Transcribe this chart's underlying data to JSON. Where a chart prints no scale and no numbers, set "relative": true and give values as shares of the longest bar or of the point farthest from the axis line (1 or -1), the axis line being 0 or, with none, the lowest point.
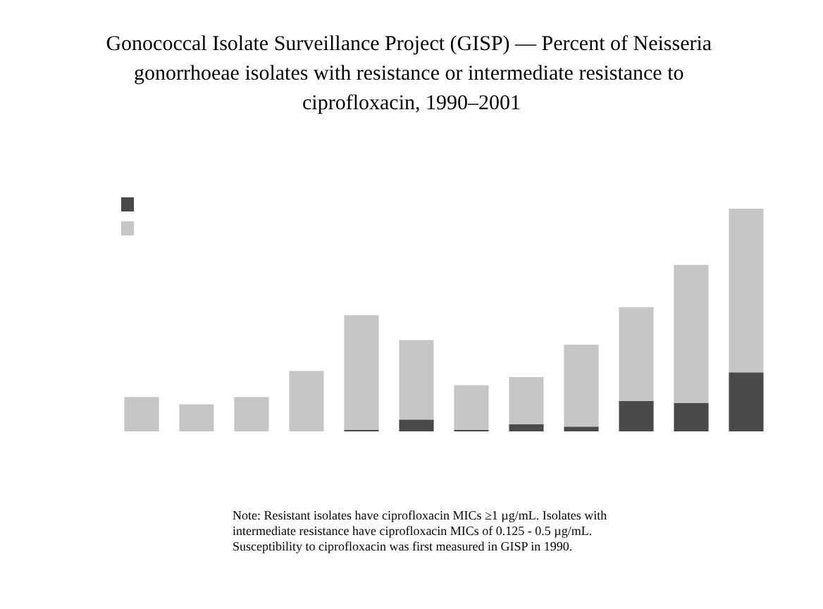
{
  "chart_data": {
    "type": "bar",
    "title": "Gonococcal Isolate Surveillance Project (GISP) — Percent of Neisseria gonorrhoeae isolates with resistance or intermediate resistance to ciprofloxacin, 1990–2001",
    "categories": [
      null,
      null,
      null,
      null,
      null,
      null,
      null,
      null,
      null,
      null,
      null,
      null
    ],
    "relative": true,
    "stacked": true,
    "series": [
      {
        "color": "#4a4a4a",
        "values": [
          0,
          0,
          0,
          0,
          0.006,
          0.053,
          0.006,
          0.032,
          0.021,
          0.137,
          0.128,
          0.265
        ]
      },
      {
        "color": "#c6c6c6",
        "values": [
          0.154,
          0.122,
          0.154,
          0.271,
          0.515,
          0.357,
          0.201,
          0.212,
          0.368,
          0.421,
          0.62,
          0.735
        ]
      }
    ],
    "annotations": [
      "Note: Resistant isolates have ciprofloxacin MICs ≥1 µg/mL. Isolates with intermediate resistance have ciprofloxacin MICs of 0.125 - 0.5 µg/mL. Susceptibility to ciprofloxacin was first measured in GISP in 1990."
    ]
  }
}
